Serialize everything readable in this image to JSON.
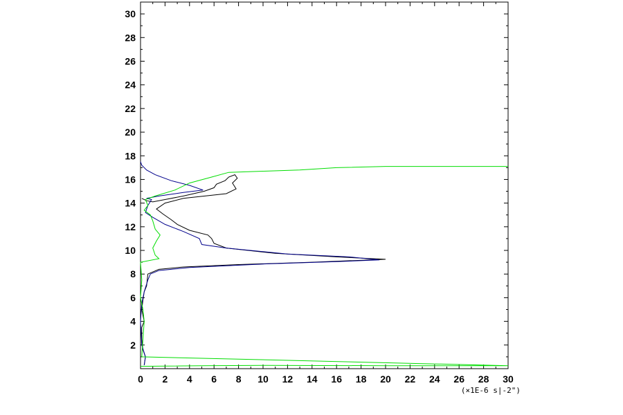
{
  "chart_data": {
    "type": "line",
    "x_unit_label": "(×1E-6 s|-2\")",
    "xlim": [
      0,
      30
    ],
    "ylim": [
      0,
      31
    ],
    "x_ticks": [
      0,
      2,
      4,
      6,
      8,
      10,
      12,
      14,
      16,
      18,
      20,
      22,
      24,
      26,
      28,
      30
    ],
    "y_ticks": [
      2,
      4,
      6,
      8,
      10,
      12,
      14,
      16,
      18,
      20,
      22,
      24,
      26,
      28,
      30
    ],
    "grid": false,
    "series": [
      {
        "color": "#000000",
        "points": [
          [
            0.3,
            0.3
          ],
          [
            0.4,
            1.0
          ],
          [
            0.2,
            1.6
          ],
          [
            0.1,
            2.5
          ],
          [
            0.1,
            3.5
          ],
          [
            0.3,
            4.0
          ],
          [
            0.1,
            5.0
          ],
          [
            0.2,
            5.8
          ],
          [
            0.3,
            6.5
          ],
          [
            0.5,
            7.0
          ],
          [
            0.6,
            8.0
          ],
          [
            1.5,
            8.4
          ],
          [
            3.5,
            8.6
          ],
          [
            8.0,
            8.8
          ],
          [
            14.0,
            9.0
          ],
          [
            20.0,
            9.25
          ],
          [
            16.0,
            9.45
          ],
          [
            11.0,
            9.75
          ],
          [
            7.0,
            10.2
          ],
          [
            6.0,
            10.6
          ],
          [
            5.8,
            11.0
          ],
          [
            5.5,
            11.3
          ],
          [
            4.0,
            11.7
          ],
          [
            3.0,
            12.2
          ],
          [
            2.5,
            12.6
          ],
          [
            1.8,
            13.1
          ],
          [
            1.3,
            13.5
          ],
          [
            2.0,
            14.0
          ],
          [
            3.5,
            14.4
          ],
          [
            7.0,
            14.8
          ],
          [
            7.8,
            15.2
          ],
          [
            7.5,
            15.7
          ],
          [
            7.9,
            16.1
          ],
          [
            7.7,
            16.4
          ],
          [
            7.2,
            16.2
          ],
          [
            6.9,
            15.9
          ],
          [
            6.2,
            15.6
          ],
          [
            6.0,
            15.3
          ],
          [
            5.2,
            15.0
          ],
          [
            3.5,
            14.6
          ],
          [
            2.0,
            14.3
          ],
          [
            1.0,
            14.1
          ],
          [
            0.5,
            14.2
          ],
          [
            0.1,
            14.4
          ]
        ]
      },
      {
        "color": "#00008b",
        "points": [
          [
            0.3,
            0.3
          ],
          [
            0.4,
            1.0
          ],
          [
            0.1,
            2.0
          ],
          [
            0.0,
            4.0
          ],
          [
            0.1,
            5.5
          ],
          [
            0.3,
            6.5
          ],
          [
            0.6,
            7.5
          ],
          [
            0.8,
            8.0
          ],
          [
            1.5,
            8.3
          ],
          [
            4.0,
            8.55
          ],
          [
            10.0,
            8.85
          ],
          [
            16.0,
            9.05
          ],
          [
            19.5,
            9.2
          ],
          [
            17.0,
            9.45
          ],
          [
            12.0,
            9.7
          ],
          [
            7.0,
            10.2
          ],
          [
            5.0,
            10.5
          ],
          [
            4.8,
            11.0
          ],
          [
            3.5,
            11.6
          ],
          [
            2.0,
            12.2
          ],
          [
            1.0,
            12.8
          ],
          [
            0.4,
            13.2
          ],
          [
            0.6,
            13.8
          ],
          [
            0.9,
            14.3
          ],
          [
            0.5,
            14.4
          ],
          [
            1.5,
            14.6
          ],
          [
            3.5,
            14.9
          ],
          [
            5.1,
            15.1
          ],
          [
            4.0,
            15.5
          ],
          [
            2.5,
            15.9
          ],
          [
            1.2,
            16.4
          ],
          [
            0.5,
            16.8
          ],
          [
            0.1,
            17.2
          ],
          [
            0.0,
            17.5
          ]
        ]
      },
      {
        "color": "#00dd00",
        "points": [
          [
            0.0,
            0.2
          ],
          [
            5.0,
            0.25
          ],
          [
            10.0,
            0.28
          ],
          [
            20.0,
            0.25
          ],
          [
            30.0,
            0.25
          ],
          [
            0.1,
            1.0
          ],
          [
            0.2,
            2.5
          ],
          [
            0.3,
            4.0
          ],
          [
            0.2,
            5.0
          ],
          [
            0.0,
            6.0
          ],
          [
            0.1,
            7.5
          ],
          [
            0.0,
            9.0
          ],
          [
            1.5,
            9.3
          ],
          [
            1.2,
            9.6
          ],
          [
            1.0,
            10.2
          ],
          [
            1.3,
            10.8
          ],
          [
            1.6,
            11.3
          ],
          [
            1.2,
            11.8
          ],
          [
            1.0,
            12.5
          ],
          [
            0.8,
            13.0
          ],
          [
            0.3,
            13.4
          ],
          [
            0.6,
            13.8
          ],
          [
            0.4,
            14.3
          ],
          [
            1.2,
            14.6
          ],
          [
            2.8,
            15.1
          ],
          [
            4.0,
            15.7
          ],
          [
            5.8,
            16.2
          ],
          [
            7.2,
            16.6
          ],
          [
            10.0,
            16.7
          ],
          [
            13.0,
            16.8
          ],
          [
            16.0,
            17.0
          ],
          [
            20.0,
            17.1
          ],
          [
            25.0,
            17.1
          ],
          [
            30.0,
            17.1
          ]
        ]
      }
    ]
  }
}
